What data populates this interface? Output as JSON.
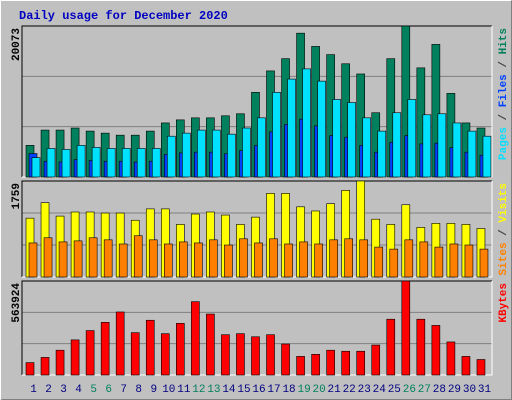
{
  "chart_data": [
    {
      "type": "bar",
      "title": "Daily usage for December 2020",
      "ylim": [
        0,
        20073
      ],
      "yticks": [
        20073
      ],
      "separator": " / ",
      "series": [
        {
          "name": "Hits",
          "color": "#00805c",
          "values": [
            4204,
            6238,
            6238,
            6509,
            6102,
            5831,
            5560,
            5560,
            6102,
            7187,
            7594,
            7865,
            7865,
            8136,
            8407,
            11255,
            14102,
            15730,
            19120,
            17357,
            16272,
            15052,
            13696,
            8543,
            15730,
            20073,
            14509,
            17628,
            11119,
            7187,
            6509
          ]
        },
        {
          "name": "Files",
          "color": "#0040ff",
          "values": [
            3119,
            2100,
            2000,
            2300,
            2200,
            2100,
            2100,
            2000,
            2100,
            3000,
            3200,
            3300,
            3300,
            3100,
            3500,
            4200,
            6000,
            7000,
            7700,
            6800,
            5500,
            5300,
            4200,
            3300,
            4600,
            5500,
            4400,
            4500,
            3900,
            3300,
            2900
          ]
        },
        {
          "name": "Pages",
          "color": "#00e0ff",
          "values": [
            2576,
            3797,
            3661,
            4204,
            3932,
            3797,
            3797,
            3797,
            3797,
            5424,
            5831,
            6238,
            6238,
            5695,
            6509,
            7865,
            11255,
            13018,
            14374,
            12746,
            10306,
            9899,
            7865,
            6102,
            8543,
            10306,
            8272,
            8407,
            7187,
            6102,
            5424
          ]
        }
      ]
    },
    {
      "type": "bar",
      "ylim": [
        0,
        1759
      ],
      "yticks": [
        1759
      ],
      "series": [
        {
          "name": "Visits",
          "color": "#ffff00",
          "values": [
            1078,
            1362,
            1116,
            1191,
            1191,
            1172,
            1172,
            1040,
            1248,
            1248,
            964,
            1154,
            1191,
            1135,
            964,
            1097,
            1532,
            1532,
            1286,
            1210,
            1343,
            1588,
            1759,
            1059,
            964,
            1324,
            908,
            983,
            983,
            964,
            889
          ]
        },
        {
          "name": "Sites",
          "color": "#ff8000",
          "values": [
            624,
            719,
            643,
            662,
            719,
            681,
            605,
            756,
            681,
            605,
            643,
            624,
            681,
            586,
            700,
            624,
            700,
            605,
            643,
            605,
            681,
            700,
            681,
            548,
            511,
            681,
            643,
            548,
            605,
            586,
            511
          ]
        }
      ]
    },
    {
      "type": "bar",
      "ylim": [
        0,
        563924
      ],
      "yticks": [
        563924
      ],
      "categories": [
        "1",
        "2",
        "3",
        "4",
        "5",
        "6",
        "7",
        "8",
        "9",
        "10",
        "11",
        "12",
        "13",
        "14",
        "15",
        "16",
        "17",
        "18",
        "19",
        "20",
        "21",
        "22",
        "23",
        "24",
        "25",
        "26",
        "27",
        "28",
        "29",
        "30",
        "31"
      ],
      "label_colors": [
        "#000080",
        "#000080",
        "#000080",
        "#000080",
        "#00805c",
        "#00805c",
        "#000080",
        "#000080",
        "#000080",
        "#000080",
        "#000080",
        "#00805c",
        "#00805c",
        "#000080",
        "#000080",
        "#000080",
        "#000080",
        "#000080",
        "#00805c",
        "#00805c",
        "#000080",
        "#000080",
        "#000080",
        "#000080",
        "#000080",
        "#00805c",
        "#00805c",
        "#000080",
        "#000080",
        "#000080",
        "#000080"
      ],
      "series": [
        {
          "name": "KBytes",
          "color": "#ff0000",
          "values": [
            74364,
            105349,
            148728,
            210698,
            266471,
            316047,
            378017,
            254077,
            328441,
            247880,
            309850,
            439987,
            365623,
            241683,
            247880,
            229289,
            241683,
            185910,
            111546,
            123940,
            148728,
            142531,
            142531,
            179713,
            334638,
            563924,
            334638,
            297456,
            198304,
            111546,
            92955
          ]
        }
      ]
    }
  ]
}
